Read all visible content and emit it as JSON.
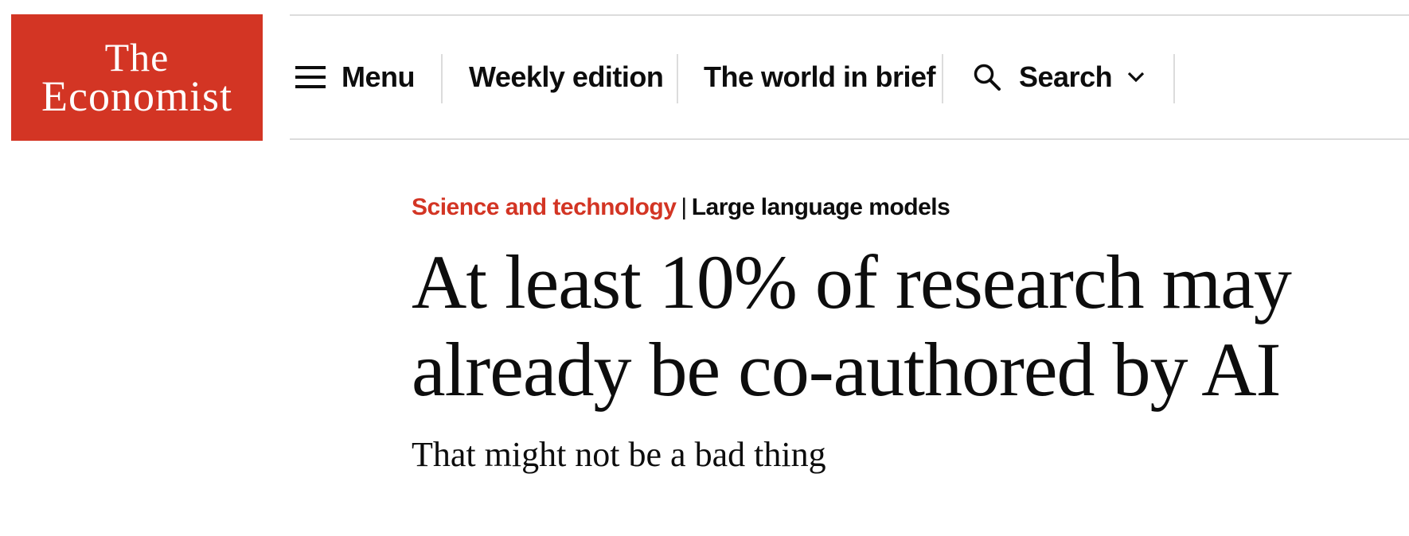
{
  "brand": {
    "line1": "The",
    "line2": "Economist",
    "color": "#d33524"
  },
  "nav": {
    "menu_label": "Menu",
    "weekly_edition_label": "Weekly edition",
    "world_in_brief_label": "The world in brief",
    "search_label": "Search",
    "icons": [
      "menu-icon",
      "search-icon",
      "chevron-down-icon"
    ]
  },
  "article": {
    "section": "Science and technology",
    "separator": "|",
    "topic": "Large language models",
    "headline_line1": "At least 10% of research may",
    "headline_line2": "already be co-authored by AI",
    "subheadline": "That might not be a bad thing",
    "accent_color": "#d33524"
  }
}
